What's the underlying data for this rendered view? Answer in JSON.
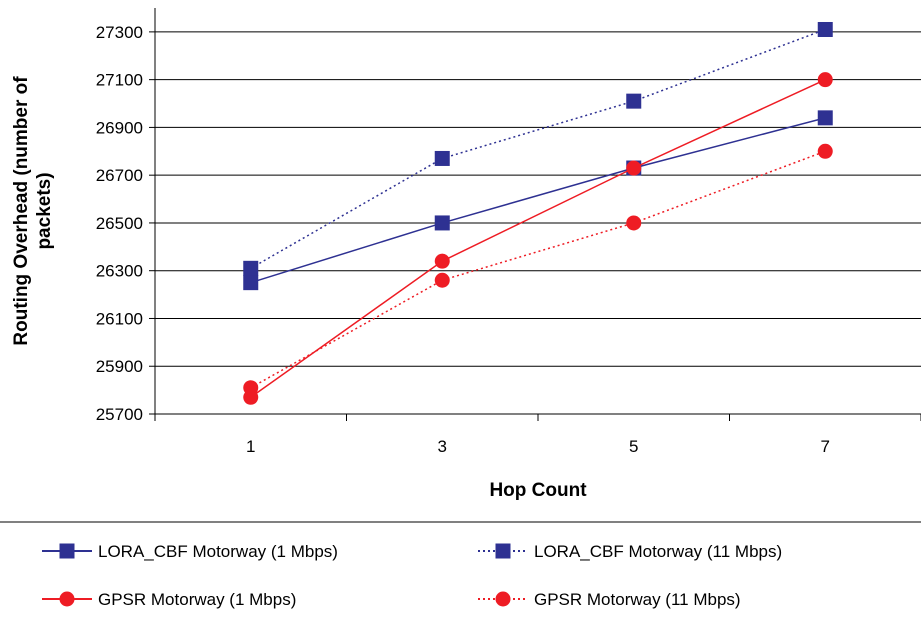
{
  "chart_data": {
    "type": "line",
    "title": "",
    "xlabel": "Hop Count",
    "ylabel": "Routing Overhead (number of packets)",
    "ylabel_lines": [
      "Routing Overhead (number of",
      "packets)"
    ],
    "categories": [
      "1",
      "3",
      "5",
      "7"
    ],
    "ylim": [
      25700,
      27400
    ],
    "yticks": [
      25700,
      25900,
      26100,
      26300,
      26500,
      26700,
      26900,
      27100,
      27300
    ],
    "ytick_labels": [
      "25700",
      "25900",
      "26100",
      "26300",
      "26500",
      "26700",
      "26900",
      "27100",
      "27300"
    ],
    "grid": "horizontal",
    "legend_position": "bottom",
    "series": [
      {
        "name": "LORA_CBF Motorway (1 Mbps)",
        "values": [
          26250,
          26500,
          26730,
          26940
        ],
        "color": "#2e3192",
        "marker": "square",
        "dash": "solid"
      },
      {
        "name": "LORA_CBF Motorway (11 Mbps)",
        "values": [
          26310,
          26770,
          27010,
          27310
        ],
        "color": "#2e3192",
        "marker": "square",
        "dash": "dotted"
      },
      {
        "name": "GPSR Motorway (1 Mbps)",
        "values": [
          25770,
          26340,
          26730,
          27100
        ],
        "color": "#ee1c24",
        "marker": "circle",
        "dash": "solid"
      },
      {
        "name": "GPSR Motorway (11 Mbps)",
        "values": [
          25810,
          26260,
          26500,
          26800
        ],
        "color": "#ee1c24",
        "marker": "circle",
        "dash": "dotted"
      }
    ]
  }
}
